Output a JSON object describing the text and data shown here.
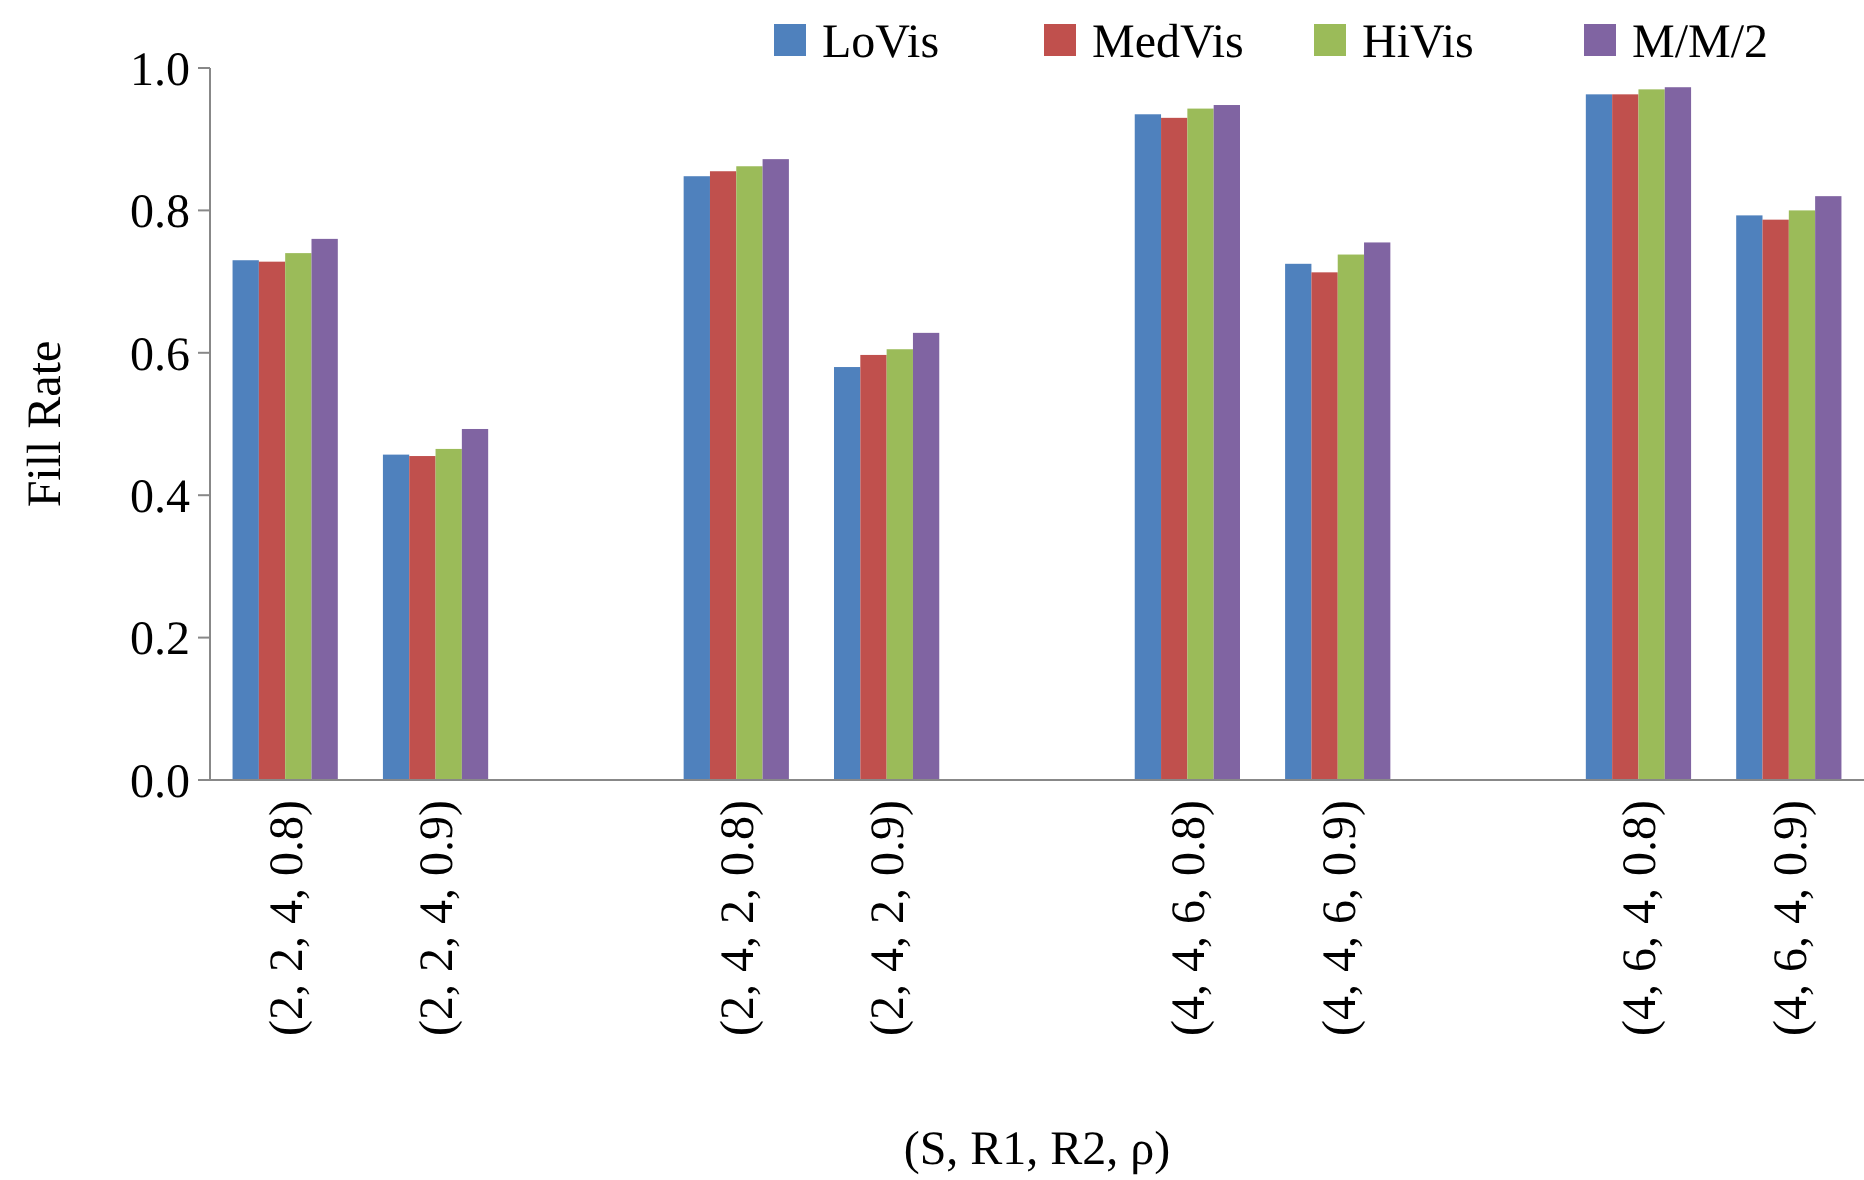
{
  "chart_data": {
    "type": "bar",
    "xlabel": "(S, R1, R2, ρ)",
    "ylabel": "Fill Rate",
    "categories": [
      "(2, 2, 4, 0.8)",
      "(2, 2, 4, 0.9)",
      null,
      "(2, 4, 2, 0.8)",
      "(2, 4, 2, 0.9)",
      null,
      "(4, 4, 6, 0.8)",
      "(4, 4, 6, 0.9)",
      null,
      "(4, 6, 4, 0.8)",
      "(4, 6, 4, 0.9)"
    ],
    "series": [
      {
        "name": "LoVis",
        "color": "#4f81bd",
        "values": [
          0.73,
          0.457,
          null,
          0.848,
          0.58,
          null,
          0.935,
          0.725,
          null,
          0.963,
          0.793
        ]
      },
      {
        "name": "MedVis",
        "color": "#c0504d",
        "values": [
          0.728,
          0.455,
          null,
          0.855,
          0.597,
          null,
          0.93,
          0.713,
          null,
          0.963,
          0.787
        ]
      },
      {
        "name": "HiVis",
        "color": "#9bbb59",
        "values": [
          0.74,
          0.465,
          null,
          0.862,
          0.605,
          null,
          0.943,
          0.738,
          null,
          0.97,
          0.8
        ]
      },
      {
        "name": "M/M/2",
        "color": "#8064a2",
        "values": [
          0.76,
          0.493,
          null,
          0.872,
          0.628,
          null,
          0.948,
          0.755,
          null,
          0.973,
          0.82
        ]
      }
    ],
    "ylim": [
      0,
      1
    ],
    "yticks": [
      {
        "value": 0,
        "label": "0.0"
      },
      {
        "value": 0.2,
        "label": "0.2"
      },
      {
        "value": 0.4,
        "label": "0.4"
      },
      {
        "value": 0.6,
        "label": "0.6"
      },
      {
        "value": 0.8,
        "label": "0.8"
      },
      {
        "value": 1,
        "label": "1.0"
      }
    ],
    "legend": "top"
  }
}
